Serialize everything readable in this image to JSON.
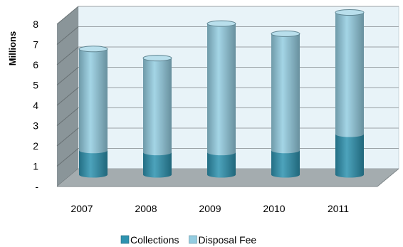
{
  "chart_data": {
    "type": "bar",
    "stacked": true,
    "style": "3d-cylinder",
    "categories": [
      "2007",
      "2008",
      "2009",
      "2010",
      "2011"
    ],
    "series": [
      {
        "name": "Collections",
        "values": [
          1.2,
          1.1,
          1.1,
          1.2,
          2.0
        ],
        "color": "#2e93b0"
      },
      {
        "name": "Disposal Fee",
        "values": [
          5.0,
          4.65,
          6.35,
          5.75,
          6.0
        ],
        "color": "#94cde1"
      }
    ],
    "title": "",
    "xlabel": "",
    "ylabel": "Millions",
    "y_ticks": [
      "-",
      "1",
      "2",
      "3",
      "4",
      "5",
      "6",
      "7",
      "8"
    ],
    "ylim": [
      0,
      8
    ],
    "grid": true,
    "legend_position": "bottom",
    "colors": {
      "wall": "#e8f3f8",
      "side_wall": "#8a9599",
      "floor": "#a4acaf",
      "gridline": "#9aa2a6"
    }
  }
}
